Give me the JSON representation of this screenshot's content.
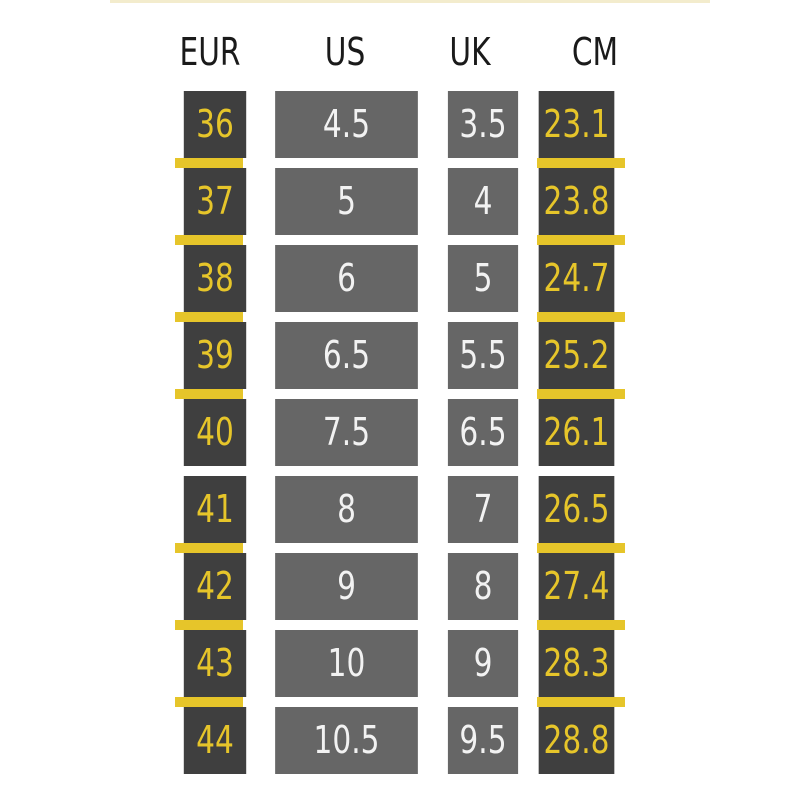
{
  "colors": {
    "accent": "#e6c52a",
    "accent_text": "#e6c52a",
    "dark_cell": "#3f3f3f",
    "mid_cell": "#666666",
    "light_text": "#f2f2f2",
    "header_text": "#1a1a1a"
  },
  "headers": [
    "EUR",
    "US",
    "UK",
    "CM"
  ],
  "rows": [
    {
      "eur": "36",
      "us": "4.5",
      "uk": "3.5",
      "cm": "23.1"
    },
    {
      "eur": "37",
      "us": "5",
      "uk": "4",
      "cm": "23.8"
    },
    {
      "eur": "38",
      "us": "6",
      "uk": "5",
      "cm": "24.7"
    },
    {
      "eur": "39",
      "us": "6.5",
      "uk": "5.5",
      "cm": "25.2"
    },
    {
      "eur": "40",
      "us": "7.5",
      "uk": "6.5",
      "cm": "26.1"
    },
    {
      "eur": "41",
      "us": "8",
      "uk": "7",
      "cm": "26.5"
    },
    {
      "eur": "42",
      "us": "9",
      "uk": "8",
      "cm": "27.4"
    },
    {
      "eur": "43",
      "us": "10",
      "uk": "9",
      "cm": "28.3"
    },
    {
      "eur": "44",
      "us": "10.5",
      "uk": "9.5",
      "cm": "28.8"
    }
  ]
}
